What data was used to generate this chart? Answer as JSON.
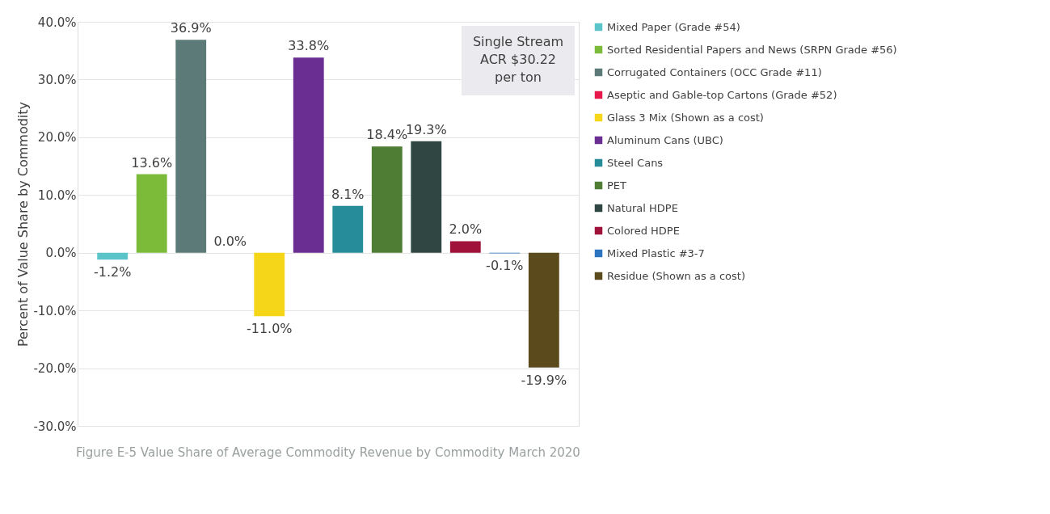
{
  "chart_data": {
    "type": "bar",
    "title": "Figure E-5 Value Share of Average Commodity Revenue by Commodity March 2020",
    "ylabel": "Percent of Value Share by Commodity",
    "categories": [
      null,
      null,
      null,
      null,
      null,
      null,
      null,
      null,
      null,
      null,
      null,
      null
    ],
    "series": [
      {
        "name": "Mixed Paper (Grade #54)",
        "color": "#5bc4c9",
        "values": [
          -1.2,
          null,
          null,
          null,
          null,
          null,
          null,
          null,
          null,
          null,
          null,
          null
        ],
        "value_labels": [
          "-1.2%",
          null,
          null,
          null,
          null,
          null,
          null,
          null,
          null,
          null,
          null,
          null
        ]
      },
      {
        "name": "Sorted Residential Papers and News (SRPN Grade #56)",
        "color": "#7cbb3a",
        "values": [
          null,
          13.6,
          null,
          null,
          null,
          null,
          null,
          null,
          null,
          null,
          null,
          null
        ],
        "value_labels": [
          null,
          "13.6%",
          null,
          null,
          null,
          null,
          null,
          null,
          null,
          null,
          null,
          null
        ]
      },
      {
        "name": "Corrugated Containers (OCC Grade #11)",
        "color": "#5b7a78",
        "values": [
          null,
          null,
          36.9,
          null,
          null,
          null,
          null,
          null,
          null,
          null,
          null,
          null
        ],
        "value_labels": [
          null,
          null,
          "36.9%",
          null,
          null,
          null,
          null,
          null,
          null,
          null,
          null,
          null
        ]
      },
      {
        "name": "Aseptic and Gable-top Cartons (Grade #52)",
        "color": "#e8194a",
        "values": [
          null,
          null,
          null,
          0.0,
          null,
          null,
          null,
          null,
          null,
          null,
          null,
          null
        ],
        "value_labels": [
          null,
          null,
          null,
          "0.0%",
          null,
          null,
          null,
          null,
          null,
          null,
          null,
          null
        ]
      },
      {
        "name": "Glass 3 Mix (Shown as a cost)",
        "color": "#f5d619",
        "values": [
          null,
          null,
          null,
          null,
          -11.0,
          null,
          null,
          null,
          null,
          null,
          null,
          null
        ],
        "value_labels": [
          null,
          null,
          null,
          null,
          "-11.0%",
          null,
          null,
          null,
          null,
          null,
          null,
          null
        ]
      },
      {
        "name": "Aluminum Cans (UBC)",
        "color": "#6a2d91",
        "values": [
          null,
          null,
          null,
          null,
          null,
          33.8,
          null,
          null,
          null,
          null,
          null,
          null
        ],
        "value_labels": [
          null,
          null,
          null,
          null,
          null,
          "33.8%",
          null,
          null,
          null,
          null,
          null,
          null
        ]
      },
      {
        "name": "Steel Cans",
        "color": "#268c99",
        "values": [
          null,
          null,
          null,
          null,
          null,
          null,
          8.1,
          null,
          null,
          null,
          null,
          null
        ],
        "value_labels": [
          null,
          null,
          null,
          null,
          null,
          null,
          "8.1%",
          null,
          null,
          null,
          null,
          null
        ]
      },
      {
        "name": "PET",
        "color": "#4e7d33",
        "values": [
          null,
          null,
          null,
          null,
          null,
          null,
          null,
          18.4,
          null,
          null,
          null,
          null
        ],
        "value_labels": [
          null,
          null,
          null,
          null,
          null,
          null,
          null,
          "18.4%",
          null,
          null,
          null,
          null
        ]
      },
      {
        "name": "Natural HDPE",
        "color": "#2f4642",
        "values": [
          null,
          null,
          null,
          null,
          null,
          null,
          null,
          null,
          19.3,
          null,
          null,
          null
        ],
        "value_labels": [
          null,
          null,
          null,
          null,
          null,
          null,
          null,
          null,
          "19.3%",
          null,
          null,
          null
        ]
      },
      {
        "name": "Colored HDPE",
        "color": "#a0123a",
        "values": [
          null,
          null,
          null,
          null,
          null,
          null,
          null,
          null,
          null,
          2.0,
          null,
          null
        ],
        "value_labels": [
          null,
          null,
          null,
          null,
          null,
          null,
          null,
          null,
          null,
          "2.0%",
          null,
          null
        ]
      },
      {
        "name": "Mixed Plastic #3-7",
        "color": "#2b74c0",
        "values": [
          null,
          null,
          null,
          null,
          null,
          null,
          null,
          null,
          null,
          null,
          -0.1,
          null
        ],
        "value_labels": [
          null,
          null,
          null,
          null,
          null,
          null,
          null,
          null,
          null,
          null,
          "-0.1%",
          null
        ]
      },
      {
        "name": "Residue (Shown as a cost)",
        "color": "#5a4a1c",
        "values": [
          null,
          null,
          null,
          null,
          null,
          null,
          null,
          null,
          null,
          null,
          null,
          -19.9
        ],
        "value_labels": [
          null,
          null,
          null,
          null,
          null,
          null,
          null,
          null,
          null,
          null,
          null,
          "-19.9%"
        ]
      }
    ],
    "ylim": [
      -30,
      40
    ],
    "yticks": [
      {
        "value": -30,
        "label": "-30.0%"
      },
      {
        "value": -20,
        "label": "-20.0%"
      },
      {
        "value": -10,
        "label": "-10.0%"
      },
      {
        "value": 0,
        "label": "0.0%"
      },
      {
        "value": 10,
        "label": "10.0%"
      },
      {
        "value": 20,
        "label": "20.0%"
      },
      {
        "value": 30,
        "label": "30.0%"
      },
      {
        "value": 40,
        "label": "40.0%"
      }
    ],
    "annotations": [
      "Single Stream ACR $30.22 per ton"
    ],
    "grid": "y",
    "legend": "right",
    "tick_labels": "y"
  }
}
